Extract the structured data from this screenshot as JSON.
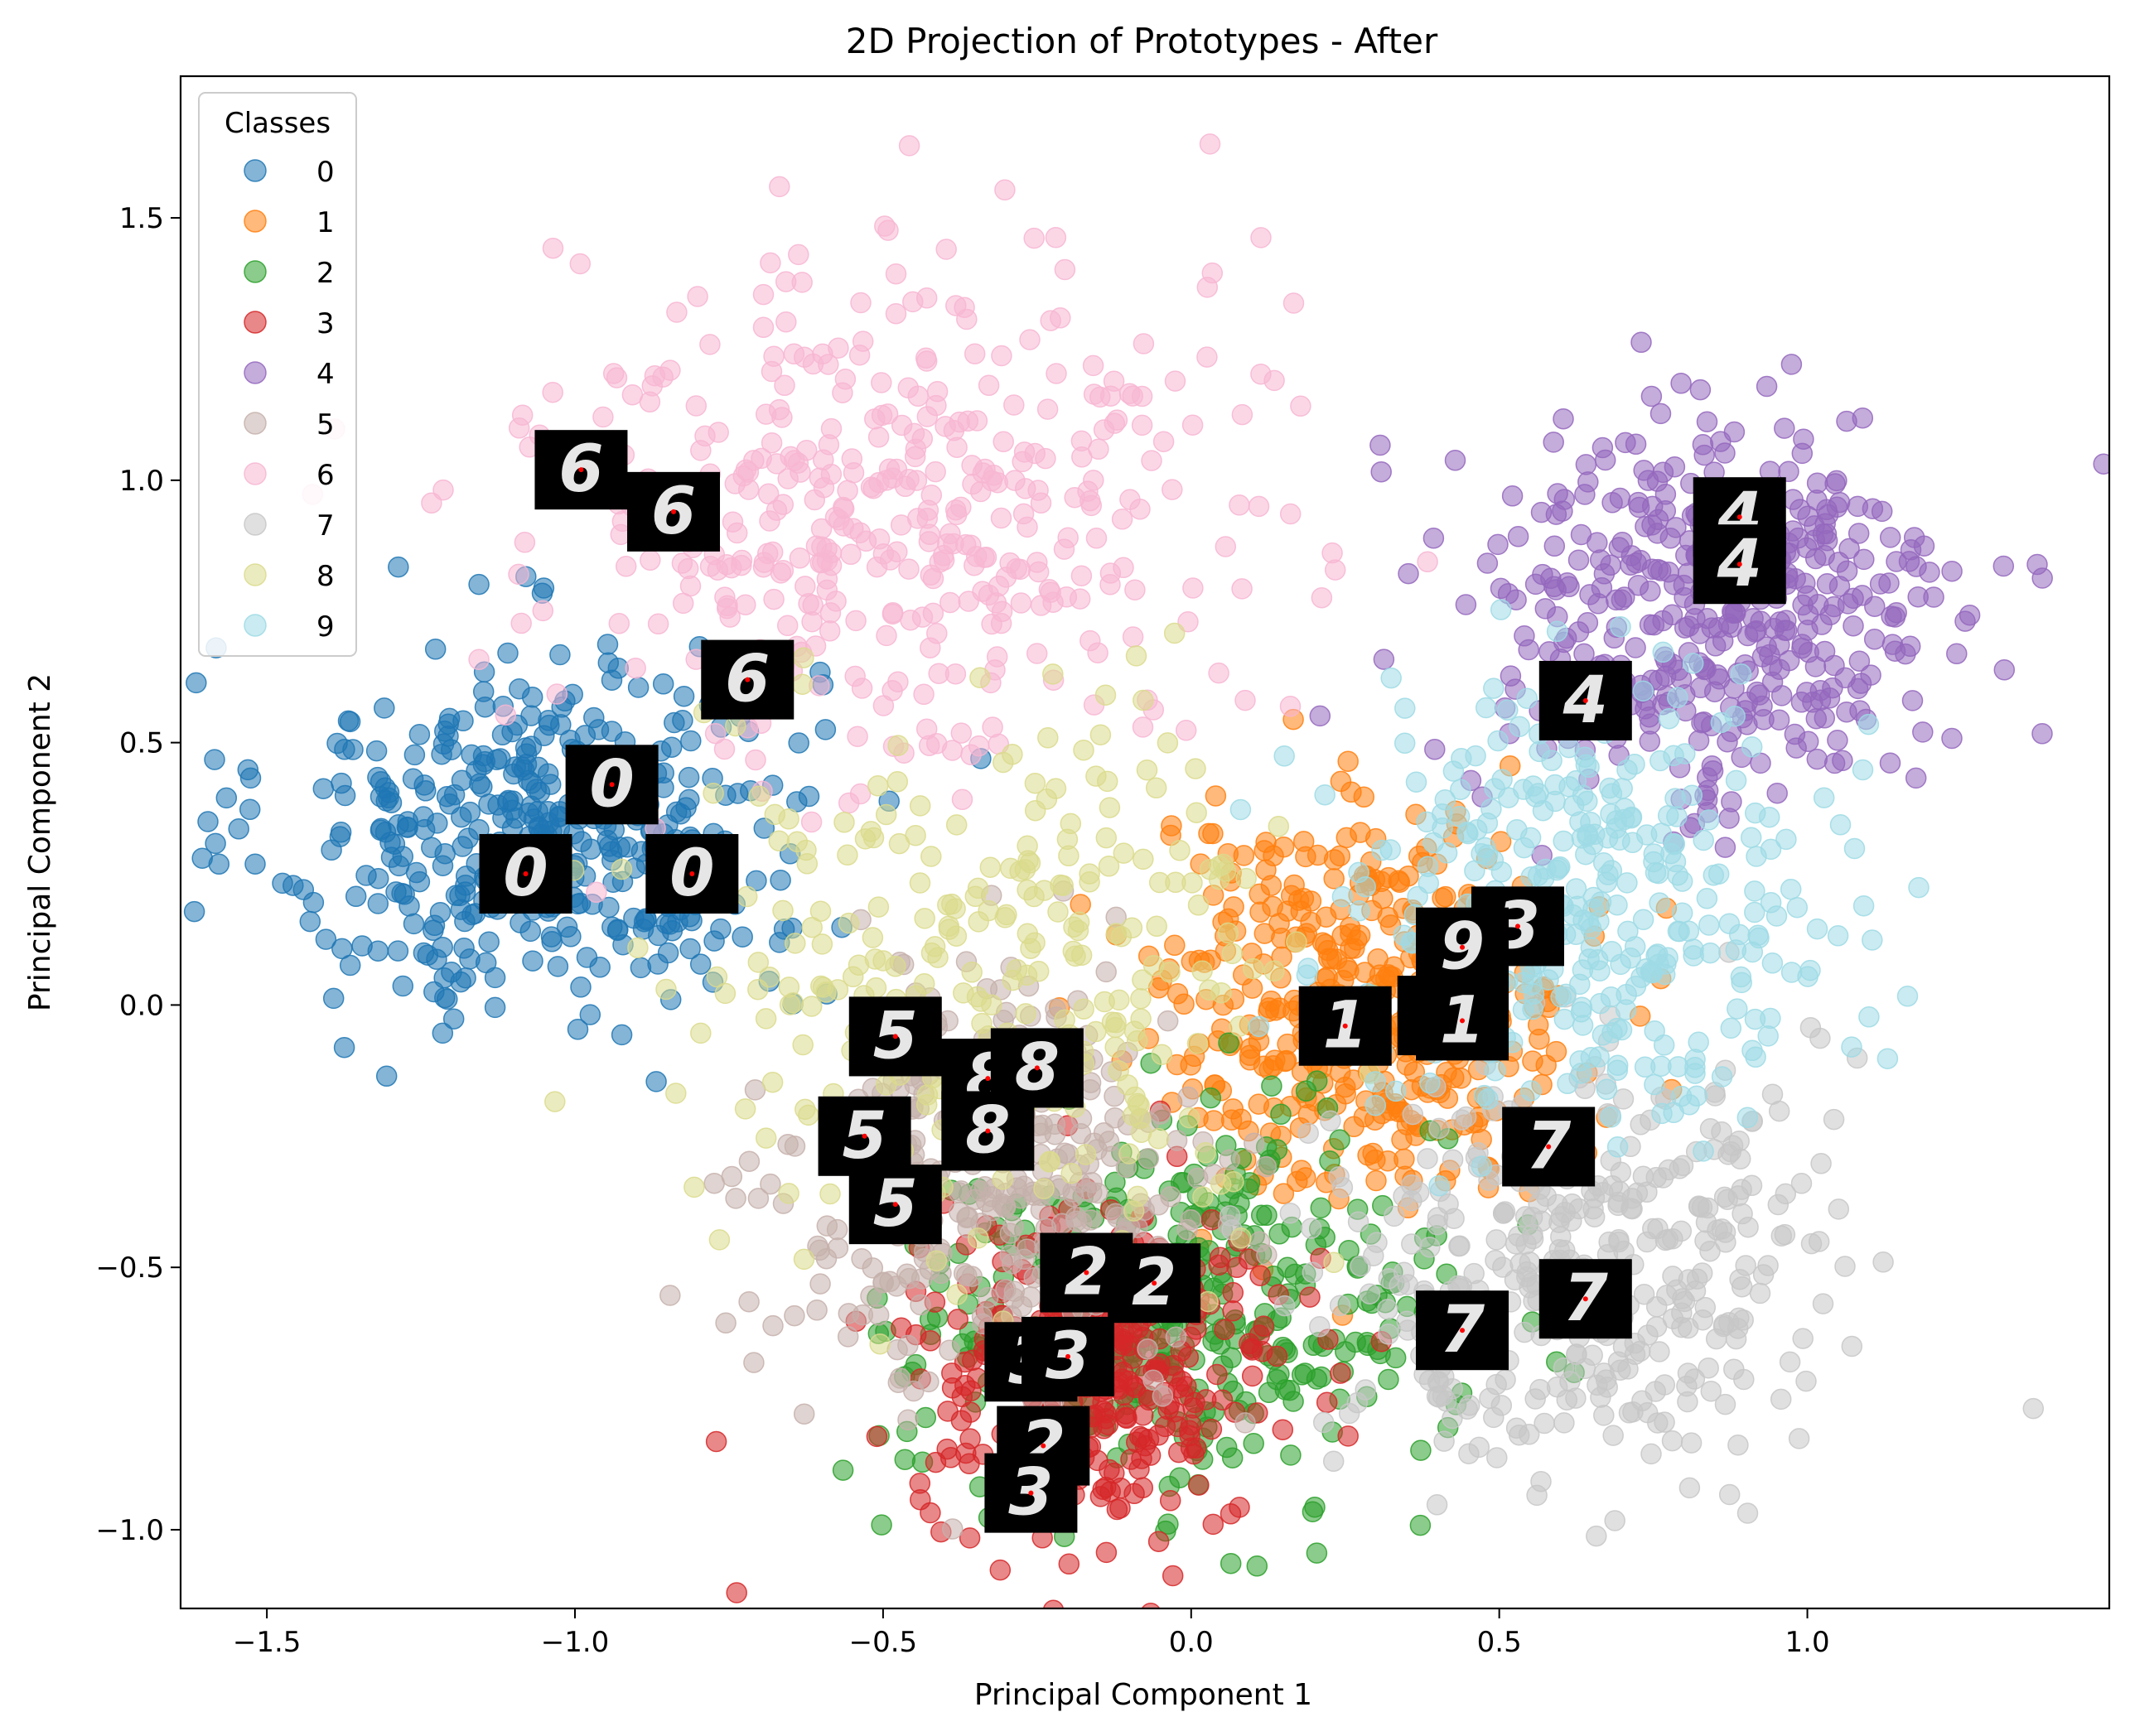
{
  "chart_data": {
    "type": "scatter",
    "title": "2D Projection of Prototypes - After",
    "xlabel": "Principal Component 1",
    "ylabel": "Principal Component 2",
    "xlim": [
      -1.64,
      1.49
    ],
    "ylim": [
      -1.15,
      1.77
    ],
    "x_ticks": [
      -1.5,
      -1.0,
      -0.5,
      0.0,
      0.5,
      1.0
    ],
    "x_tick_labels": [
      "−1.5",
      "−1.0",
      "−0.5",
      "0.0",
      "0.5",
      "1.0"
    ],
    "y_ticks": [
      -1.0,
      -0.5,
      0.0,
      0.5,
      1.0,
      1.5
    ],
    "y_tick_labels": [
      "−1.0",
      "−0.5",
      "0.0",
      "0.5",
      "1.0",
      "1.5"
    ],
    "grid": false,
    "legend": {
      "title": "Classes",
      "placement": "top-left",
      "entries": [
        "0",
        "1",
        "2",
        "3",
        "4",
        "5",
        "6",
        "7",
        "8",
        "9"
      ]
    },
    "series": [
      {
        "name": "0",
        "color": "#1f77b4",
        "center": [
          -1.05,
          0.33
        ],
        "spread": [
          0.22,
          0.18
        ],
        "count": 420
      },
      {
        "name": "1",
        "color": "#ff7f0e",
        "center": [
          0.28,
          0.0
        ],
        "spread": [
          0.17,
          0.18
        ],
        "count": 420
      },
      {
        "name": "2",
        "color": "#2ca02c",
        "center": [
          -0.02,
          -0.58
        ],
        "spread": [
          0.22,
          0.18
        ],
        "count": 380
      },
      {
        "name": "3",
        "color": "#d62728",
        "center": [
          -0.15,
          -0.7
        ],
        "spread": [
          0.15,
          0.15
        ],
        "count": 360
      },
      {
        "name": "4",
        "color": "#9467bd",
        "center": [
          0.85,
          0.75
        ],
        "spread": [
          0.2,
          0.2
        ],
        "count": 420
      },
      {
        "name": "5",
        "color": "#c5b0ab",
        "center": [
          -0.3,
          -0.35
        ],
        "spread": [
          0.18,
          0.2
        ],
        "count": 340
      },
      {
        "name": "6",
        "color": "#f7b6d2",
        "center": [
          -0.5,
          0.95
        ],
        "spread": [
          0.28,
          0.25
        ],
        "count": 420
      },
      {
        "name": "7",
        "color": "#c7c7c7",
        "center": [
          0.62,
          -0.5
        ],
        "spread": [
          0.2,
          0.2
        ],
        "count": 400
      },
      {
        "name": "8",
        "color": "#dbdb8d",
        "center": [
          -0.3,
          0.05
        ],
        "spread": [
          0.25,
          0.25
        ],
        "count": 300
      },
      {
        "name": "9",
        "color": "#9edae5",
        "center": [
          0.65,
          0.2
        ],
        "spread": [
          0.2,
          0.2
        ],
        "count": 360
      }
    ],
    "prototypes": [
      {
        "label": "6",
        "x": -0.99,
        "y": 1.02
      },
      {
        "label": "6",
        "x": -0.84,
        "y": 0.94
      },
      {
        "label": "6",
        "x": -0.72,
        "y": 0.62
      },
      {
        "label": "0",
        "x": -0.94,
        "y": 0.42
      },
      {
        "label": "0",
        "x": -1.08,
        "y": 0.25
      },
      {
        "label": "0",
        "x": -0.81,
        "y": 0.25
      },
      {
        "label": "4",
        "x": 0.89,
        "y": 0.93
      },
      {
        "label": "4",
        "x": 0.89,
        "y": 0.84
      },
      {
        "label": "4",
        "x": 0.64,
        "y": 0.58
      },
      {
        "label": "3",
        "x": 0.53,
        "y": 0.15
      },
      {
        "label": "9",
        "x": 0.44,
        "y": 0.11
      },
      {
        "label": "1",
        "x": 0.41,
        "y": -0.02
      },
      {
        "label": "1",
        "x": 0.44,
        "y": -0.03
      },
      {
        "label": "1",
        "x": 0.25,
        "y": -0.04
      },
      {
        "label": "5",
        "x": -0.48,
        "y": -0.06
      },
      {
        "label": "8",
        "x": -0.33,
        "y": -0.14
      },
      {
        "label": "8",
        "x": -0.25,
        "y": -0.12
      },
      {
        "label": "5",
        "x": -0.53,
        "y": -0.25
      },
      {
        "label": "8",
        "x": -0.33,
        "y": -0.24
      },
      {
        "label": "5",
        "x": -0.48,
        "y": -0.38
      },
      {
        "label": "7",
        "x": 0.58,
        "y": -0.27
      },
      {
        "label": "2",
        "x": -0.17,
        "y": -0.51
      },
      {
        "label": "2",
        "x": -0.06,
        "y": -0.53
      },
      {
        "label": "7",
        "x": 0.64,
        "y": -0.56
      },
      {
        "label": "7",
        "x": 0.44,
        "y": -0.62
      },
      {
        "label": "3",
        "x": -0.26,
        "y": -0.68
      },
      {
        "label": "3",
        "x": -0.2,
        "y": -0.67
      },
      {
        "label": "2",
        "x": -0.24,
        "y": -0.84
      },
      {
        "label": "3",
        "x": -0.26,
        "y": -0.93
      }
    ]
  }
}
